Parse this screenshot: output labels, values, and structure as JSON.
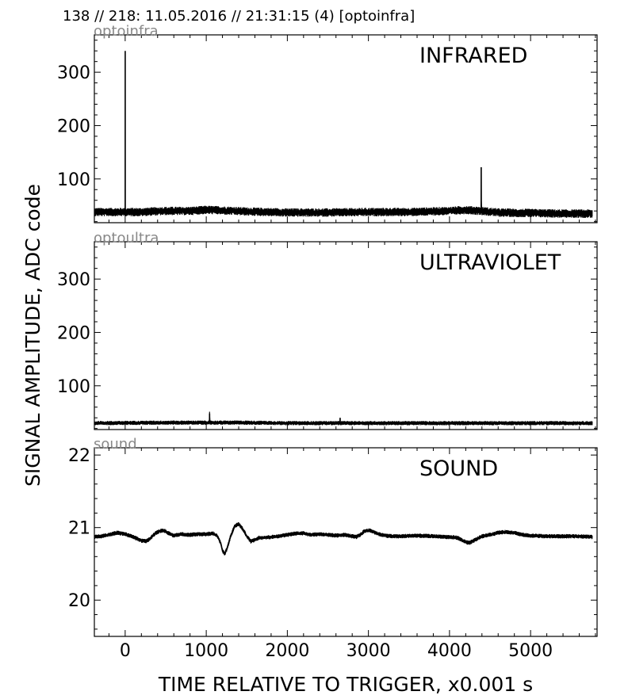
{
  "header": "138 // 218:   11.05.2016 // 21:31:15 (4)  [optoinfra]",
  "xlabel": "TIME RELATIVE TO TRIGGER,   x0.001 s",
  "ylabel": "SIGNAL AMPLITUDE,  ADC code",
  "chart_data": [
    {
      "type": "line",
      "corner_label": "optoinfra",
      "panel_title": "INFRARED",
      "xlim": [
        -380,
        5820
      ],
      "ylim": [
        18,
        370
      ],
      "xticks": [
        0,
        1000,
        2000,
        3000,
        4000,
        5000
      ],
      "yticks": [
        100,
        200,
        300
      ],
      "yticks_labels": [
        "100",
        "200",
        "300"
      ],
      "x": [
        -380,
        0,
        0.5,
        1,
        200,
        500,
        800,
        1000,
        1200,
        1500,
        2000,
        2500,
        3000,
        3500,
        4000,
        4200,
        4390,
        4391,
        4392,
        4600,
        5000,
        5400,
        5760
      ],
      "y": [
        38,
        38,
        340,
        38,
        38,
        40,
        40,
        42,
        41,
        39,
        37,
        37,
        38,
        38,
        40,
        42,
        40,
        122,
        40,
        37,
        36,
        35,
        35
      ],
      "noise_band": 8
    },
    {
      "type": "line",
      "corner_label": "optoultra",
      "panel_title": "ULTRAVIOLET",
      "xlim": [
        -380,
        5820
      ],
      "ylim": [
        18,
        370
      ],
      "xticks": [
        0,
        1000,
        2000,
        3000,
        4000,
        5000
      ],
      "yticks": [
        100,
        200,
        300
      ],
      "yticks_labels": [
        "100",
        "200",
        "300"
      ],
      "x": [
        -380,
        500,
        1000,
        1040,
        1041,
        1042,
        1500,
        2000,
        2650,
        2651,
        2652,
        3000,
        4000,
        5000,
        5760
      ],
      "y": [
        30,
        31,
        31,
        31,
        48,
        31,
        31,
        30,
        30,
        40,
        30,
        30,
        30,
        30,
        30
      ],
      "noise_band": 4
    },
    {
      "type": "line",
      "corner_label": "sound",
      "panel_title": "SOUND",
      "xlim": [
        -380,
        5820
      ],
      "ylim": [
        19.5,
        22.1
      ],
      "xticks": [
        0,
        1000,
        2000,
        3000,
        4000,
        5000
      ],
      "xticks_labels": [
        "0",
        "1000",
        "2000",
        "3000",
        "4000",
        "5000"
      ],
      "yticks": [
        20,
        21,
        22
      ],
      "yticks_labels": [
        "20",
        "21",
        "22"
      ],
      "x": [
        -380,
        -300,
        -200,
        -100,
        0,
        100,
        200,
        260,
        300,
        350,
        400,
        450,
        500,
        550,
        600,
        700,
        800,
        900,
        1000,
        1080,
        1140,
        1180,
        1200,
        1230,
        1260,
        1300,
        1350,
        1400,
        1450,
        1500,
        1550,
        1600,
        1650,
        1700,
        1800,
        1900,
        2000,
        2100,
        2200,
        2300,
        2400,
        2500,
        2600,
        2700,
        2800,
        2850,
        2900,
        2950,
        3000,
        3050,
        3100,
        3200,
        3300,
        3400,
        3600,
        3800,
        4000,
        4100,
        4200,
        4250,
        4300,
        4400,
        4500,
        4600,
        4700,
        4800,
        4900,
        5000,
        5200,
        5400,
        5600,
        5760
      ],
      "y": [
        20.87,
        20.88,
        20.9,
        20.93,
        20.91,
        20.87,
        20.82,
        20.81,
        20.84,
        20.9,
        20.94,
        20.96,
        20.95,
        20.91,
        20.89,
        20.91,
        20.9,
        20.91,
        20.91,
        20.92,
        20.88,
        20.78,
        20.68,
        20.64,
        20.72,
        20.88,
        21.02,
        21.05,
        20.98,
        20.88,
        20.81,
        20.83,
        20.86,
        20.86,
        20.87,
        20.88,
        20.9,
        20.92,
        20.92,
        20.9,
        20.91,
        20.9,
        20.89,
        20.9,
        20.88,
        20.87,
        20.9,
        20.95,
        20.96,
        20.95,
        20.92,
        20.89,
        20.88,
        20.88,
        20.89,
        20.88,
        20.87,
        20.86,
        20.8,
        20.79,
        20.82,
        20.88,
        20.9,
        20.93,
        20.94,
        20.93,
        20.9,
        20.89,
        20.88,
        20.88,
        20.88,
        20.87
      ],
      "noise_band": 0.03
    }
  ]
}
